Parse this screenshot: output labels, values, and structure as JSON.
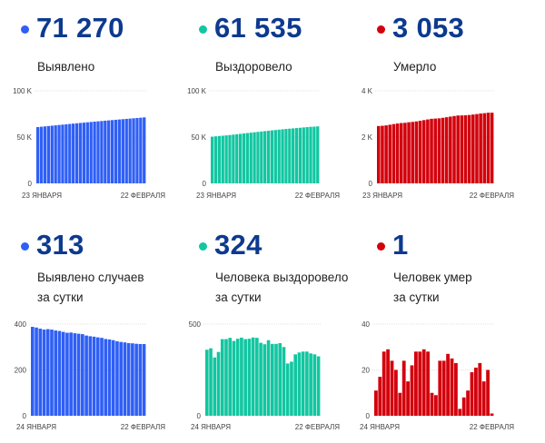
{
  "panels": [
    {
      "id": "infected-total",
      "value": "71 270",
      "label_lines": [
        "Выявлено"
      ],
      "color": "#2f5ff5",
      "dot_color": "#2f5ff5"
    },
    {
      "id": "recovered-total",
      "value": "61 535",
      "label_lines": [
        "Выздоровело"
      ],
      "color": "#12c6a1",
      "dot_color": "#12c6a1"
    },
    {
      "id": "deaths-total",
      "value": "3 053",
      "label_lines": [
        "Умерло"
      ],
      "color": "#d3000c",
      "dot_color": "#d3000c"
    },
    {
      "id": "infected-daily",
      "value": "313",
      "label_lines": [
        "Выявлено случаев",
        "за сутки"
      ],
      "color": "#2f5ff5",
      "dot_color": "#2f5ff5"
    },
    {
      "id": "recovered-daily",
      "value": "324",
      "label_lines": [
        "Человека выздоровело",
        "за сутки"
      ],
      "color": "#12c6a1",
      "dot_color": "#12c6a1"
    },
    {
      "id": "deaths-daily",
      "value": "1",
      "label_lines": [
        "Человек умер",
        "за сутки"
      ],
      "color": "#d3000c",
      "dot_color": "#d3000c"
    }
  ],
  "chart_data": [
    {
      "type": "bar",
      "title": "Выявлено",
      "x_start_label": "23 ЯНВАРЯ",
      "x_end_label": "22 ФЕВРАЛЯ",
      "ylim": [
        0,
        100000
      ],
      "yticks": [
        0,
        50000,
        100000
      ],
      "ytick_labels": [
        "0",
        "50 K",
        "100 K"
      ],
      "grid": true,
      "values": [
        60772,
        61160,
        61545,
        61925,
        62301,
        62679,
        63055,
        63427,
        63797,
        64163,
        64525,
        64888,
        65248,
        65606,
        65962,
        66312,
        66659,
        67004,
        67346,
        67686,
        68021,
        68354,
        68684,
        69009,
        69331,
        69651,
        69968,
        70284,
        70598,
        70911,
        71270
      ]
    },
    {
      "type": "bar",
      "title": "Выздоровело",
      "x_start_label": "23 ЯНВАРЯ",
      "x_end_label": "22 ФЕВРАЛЯ",
      "ylim": [
        0,
        100000
      ],
      "yticks": [
        0,
        50000,
        100000
      ],
      "ytick_labels": [
        "0",
        "50 K",
        "100 K"
      ],
      "grid": true,
      "values": [
        50435,
        50795,
        51163,
        51481,
        51829,
        52247,
        52665,
        53090,
        53498,
        53918,
        54344,
        54762,
        55182,
        55609,
        56034,
        56432,
        56822,
        57234,
        57626,
        58018,
        58414,
        58789,
        59074,
        59369,
        59704,
        60049,
        60399,
        60749,
        61089,
        61211,
        61535
      ]
    },
    {
      "type": "bar",
      "title": "Умерло",
      "x_start_label": "23 ЯНВАРЯ",
      "x_end_label": "22 ФЕВРАЛЯ",
      "ylim": [
        0,
        4000
      ],
      "yticks": [
        0,
        2000,
        4000
      ],
      "ytick_labels": [
        "0",
        "2 K",
        "4 K"
      ],
      "grid": true,
      "values": [
        2477,
        2488,
        2505,
        2533,
        2562,
        2586,
        2606,
        2616,
        2640,
        2655,
        2677,
        2705,
        2733,
        2762,
        2790,
        2800,
        2809,
        2833,
        2857,
        2884,
        2909,
        2932,
        2935,
        2943,
        2954,
        2973,
        2994,
        3017,
        3032,
        3052,
        3053
      ]
    },
    {
      "type": "bar",
      "title": "Выявлено случаев за сутки",
      "x_start_label": "24 ЯНВАРЯ",
      "x_end_label": "22 ФЕВРАЛЯ",
      "ylim": [
        0,
        400
      ],
      "yticks": [
        0,
        200,
        400
      ],
      "ytick_labels": [
        "0",
        "200",
        "400"
      ],
      "grid": true,
      "values": [
        388,
        385,
        380,
        376,
        378,
        376,
        372,
        370,
        366,
        362,
        363,
        360,
        358,
        356,
        350,
        347,
        345,
        342,
        340,
        335,
        333,
        330,
        325,
        322,
        320,
        317,
        316,
        314,
        313,
        313
      ]
    },
    {
      "type": "bar",
      "title": "Человека выздоровело за сутки",
      "x_start_label": "24 ЯНВАРЯ",
      "x_end_label": "22 ФЕВРАЛЯ",
      "ylim": [
        0,
        500
      ],
      "yticks": [
        0,
        500
      ],
      "ytick_labels": [
        "0",
        "500"
      ],
      "grid": true,
      "values": [
        360,
        368,
        318,
        348,
        418,
        418,
        425,
        408,
        420,
        426,
        418,
        420,
        427,
        425,
        398,
        390,
        412,
        392,
        392,
        396,
        375,
        285,
        295,
        335,
        345,
        350,
        350,
        340,
        335,
        324
      ]
    },
    {
      "type": "bar",
      "title": "Человек умер за сутки",
      "x_start_label": "24 ЯНВАРЯ",
      "x_end_label": "22 ФЕВРАЛЯ",
      "ylim": [
        0,
        40
      ],
      "yticks": [
        0,
        20,
        40
      ],
      "ytick_labels": [
        "0",
        "20",
        "40"
      ],
      "grid": true,
      "values": [
        11,
        17,
        28,
        29,
        24,
        20,
        10,
        24,
        15,
        22,
        28,
        28,
        29,
        28,
        10,
        9,
        24,
        24,
        27,
        25,
        23,
        3,
        8,
        11,
        19,
        21,
        23,
        15,
        20,
        1
      ]
    }
  ]
}
